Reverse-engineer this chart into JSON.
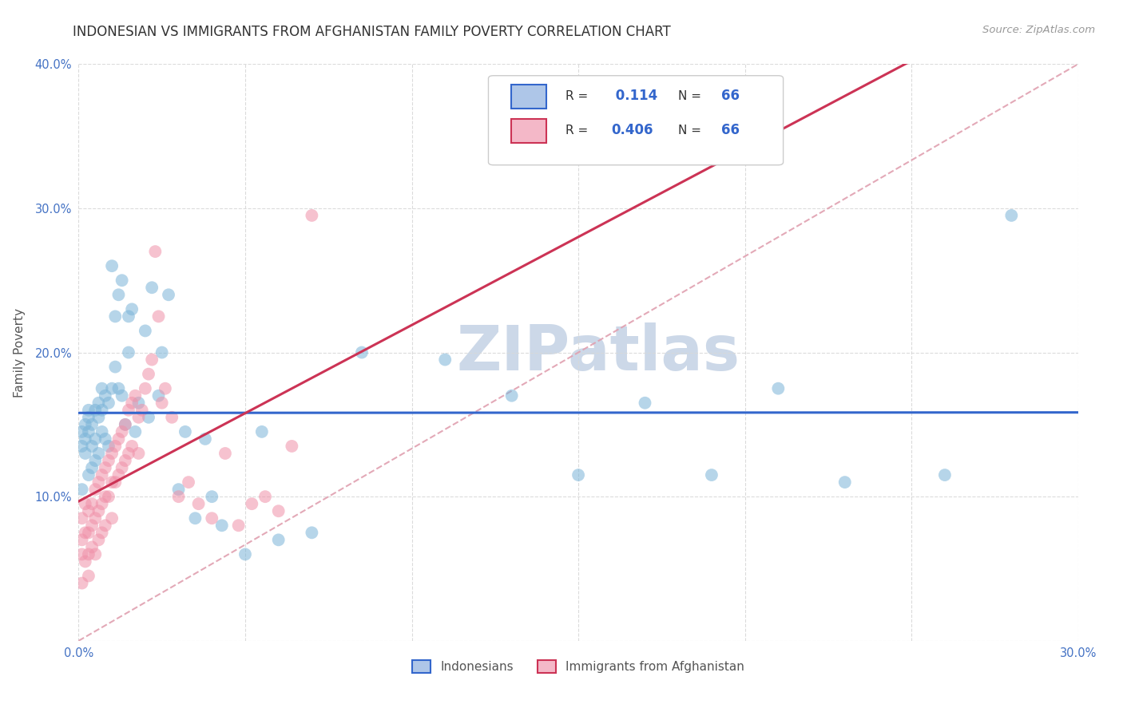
{
  "title": "INDONESIAN VS IMMIGRANTS FROM AFGHANISTAN FAMILY POVERTY CORRELATION CHART",
  "source": "Source: ZipAtlas.com",
  "ylabel": "Family Poverty",
  "xlim": [
    0.0,
    0.3
  ],
  "ylim": [
    0.0,
    0.4
  ],
  "x_ticks": [
    0.0,
    0.05,
    0.1,
    0.15,
    0.2,
    0.25,
    0.3
  ],
  "y_ticks": [
    0.0,
    0.1,
    0.2,
    0.3,
    0.4
  ],
  "legend1_r": "0.114",
  "legend1_n": "66",
  "legend2_r": "0.406",
  "legend2_n": "66",
  "legend1_color": "#aec6e8",
  "legend2_color": "#f4b8c8",
  "blue_color": "#7ab4d8",
  "pink_color": "#f090a8",
  "trend_blue": "#3366cc",
  "trend_pink": "#cc3355",
  "dashed_line_color": "#e0a0b0",
  "watermark_color": "#ccd8e8",
  "background_color": "#ffffff",
  "grid_color": "#d8d8d8",
  "indonesians_x": [
    0.001,
    0.001,
    0.001,
    0.002,
    0.002,
    0.002,
    0.003,
    0.003,
    0.003,
    0.003,
    0.004,
    0.004,
    0.004,
    0.005,
    0.005,
    0.005,
    0.006,
    0.006,
    0.006,
    0.007,
    0.007,
    0.007,
    0.008,
    0.008,
    0.009,
    0.009,
    0.01,
    0.01,
    0.011,
    0.011,
    0.012,
    0.012,
    0.013,
    0.013,
    0.014,
    0.015,
    0.015,
    0.016,
    0.017,
    0.018,
    0.02,
    0.021,
    0.022,
    0.024,
    0.025,
    0.027,
    0.03,
    0.032,
    0.035,
    0.038,
    0.04,
    0.043,
    0.05,
    0.055,
    0.06,
    0.07,
    0.085,
    0.11,
    0.13,
    0.15,
    0.17,
    0.19,
    0.21,
    0.23,
    0.26,
    0.28
  ],
  "indonesians_y": [
    0.135,
    0.145,
    0.105,
    0.15,
    0.14,
    0.13,
    0.155,
    0.16,
    0.145,
    0.115,
    0.15,
    0.135,
    0.12,
    0.14,
    0.16,
    0.125,
    0.155,
    0.165,
    0.13,
    0.16,
    0.175,
    0.145,
    0.17,
    0.14,
    0.165,
    0.135,
    0.26,
    0.175,
    0.225,
    0.19,
    0.24,
    0.175,
    0.25,
    0.17,
    0.15,
    0.225,
    0.2,
    0.23,
    0.145,
    0.165,
    0.215,
    0.155,
    0.245,
    0.17,
    0.2,
    0.24,
    0.105,
    0.145,
    0.085,
    0.14,
    0.1,
    0.08,
    0.06,
    0.145,
    0.07,
    0.075,
    0.2,
    0.195,
    0.17,
    0.115,
    0.165,
    0.115,
    0.175,
    0.11,
    0.115,
    0.295
  ],
  "afghan_x": [
    0.001,
    0.001,
    0.001,
    0.001,
    0.002,
    0.002,
    0.002,
    0.003,
    0.003,
    0.003,
    0.003,
    0.004,
    0.004,
    0.004,
    0.005,
    0.005,
    0.005,
    0.006,
    0.006,
    0.006,
    0.007,
    0.007,
    0.007,
    0.008,
    0.008,
    0.008,
    0.009,
    0.009,
    0.01,
    0.01,
    0.01,
    0.011,
    0.011,
    0.012,
    0.012,
    0.013,
    0.013,
    0.014,
    0.014,
    0.015,
    0.015,
    0.016,
    0.016,
    0.017,
    0.018,
    0.018,
    0.019,
    0.02,
    0.021,
    0.022,
    0.023,
    0.024,
    0.025,
    0.026,
    0.028,
    0.03,
    0.033,
    0.036,
    0.04,
    0.044,
    0.048,
    0.052,
    0.056,
    0.06,
    0.064,
    0.07
  ],
  "afghan_y": [
    0.085,
    0.07,
    0.06,
    0.04,
    0.095,
    0.075,
    0.055,
    0.09,
    0.075,
    0.06,
    0.045,
    0.095,
    0.08,
    0.065,
    0.105,
    0.085,
    0.06,
    0.11,
    0.09,
    0.07,
    0.115,
    0.095,
    0.075,
    0.12,
    0.1,
    0.08,
    0.125,
    0.1,
    0.13,
    0.11,
    0.085,
    0.135,
    0.11,
    0.14,
    0.115,
    0.145,
    0.12,
    0.15,
    0.125,
    0.16,
    0.13,
    0.165,
    0.135,
    0.17,
    0.155,
    0.13,
    0.16,
    0.175,
    0.185,
    0.195,
    0.27,
    0.225,
    0.165,
    0.175,
    0.155,
    0.1,
    0.11,
    0.095,
    0.085,
    0.13,
    0.08,
    0.095,
    0.1,
    0.09,
    0.135,
    0.295
  ],
  "title_fontsize": 12,
  "axis_label_fontsize": 11,
  "tick_fontsize": 10.5,
  "source_fontsize": 9.5
}
